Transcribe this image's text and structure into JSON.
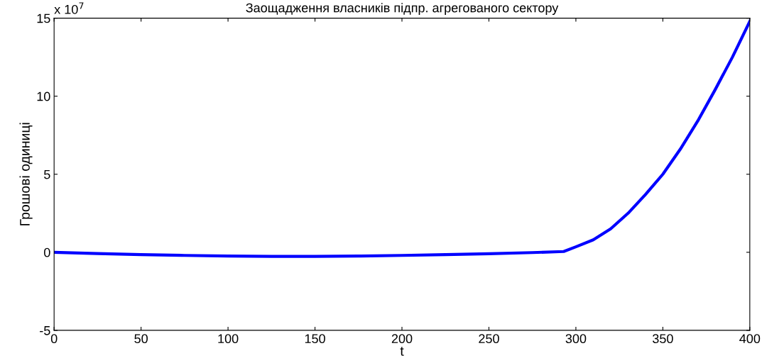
{
  "chart_data": {
    "type": "line",
    "title": "Заощадження власників підпр. агрегованого сектору",
    "xlabel": "t",
    "ylabel": "Грошові одиниці",
    "annotations": [
      "x 10$^{7}$"
    ],
    "x": [
      0,
      25,
      50,
      75,
      100,
      125,
      150,
      175,
      200,
      225,
      250,
      275,
      293,
      300,
      310,
      320,
      330,
      340,
      350,
      360,
      370,
      380,
      390,
      400
    ],
    "series": [
      {
        "color": "#0000ff",
        "values": [
          0,
          -0.08,
          -0.15,
          -0.2,
          -0.24,
          -0.26,
          -0.26,
          -0.24,
          -0.2,
          -0.15,
          -0.09,
          -0.02,
          0.05,
          0.35,
          0.8,
          1.5,
          2.5,
          3.7,
          5,
          6.6,
          8.4,
          10.4,
          12.5,
          14.8
        ]
      }
    ],
    "xlim": [
      0,
      400
    ],
    "ylim": [
      -5,
      15
    ],
    "xticks": [
      0,
      50,
      100,
      150,
      200,
      250,
      300,
      350,
      400
    ],
    "yticks": [
      -5,
      0,
      5,
      10,
      15
    ],
    "grid": false,
    "legend": false,
    "marker": "none",
    "line_style": "solid"
  }
}
